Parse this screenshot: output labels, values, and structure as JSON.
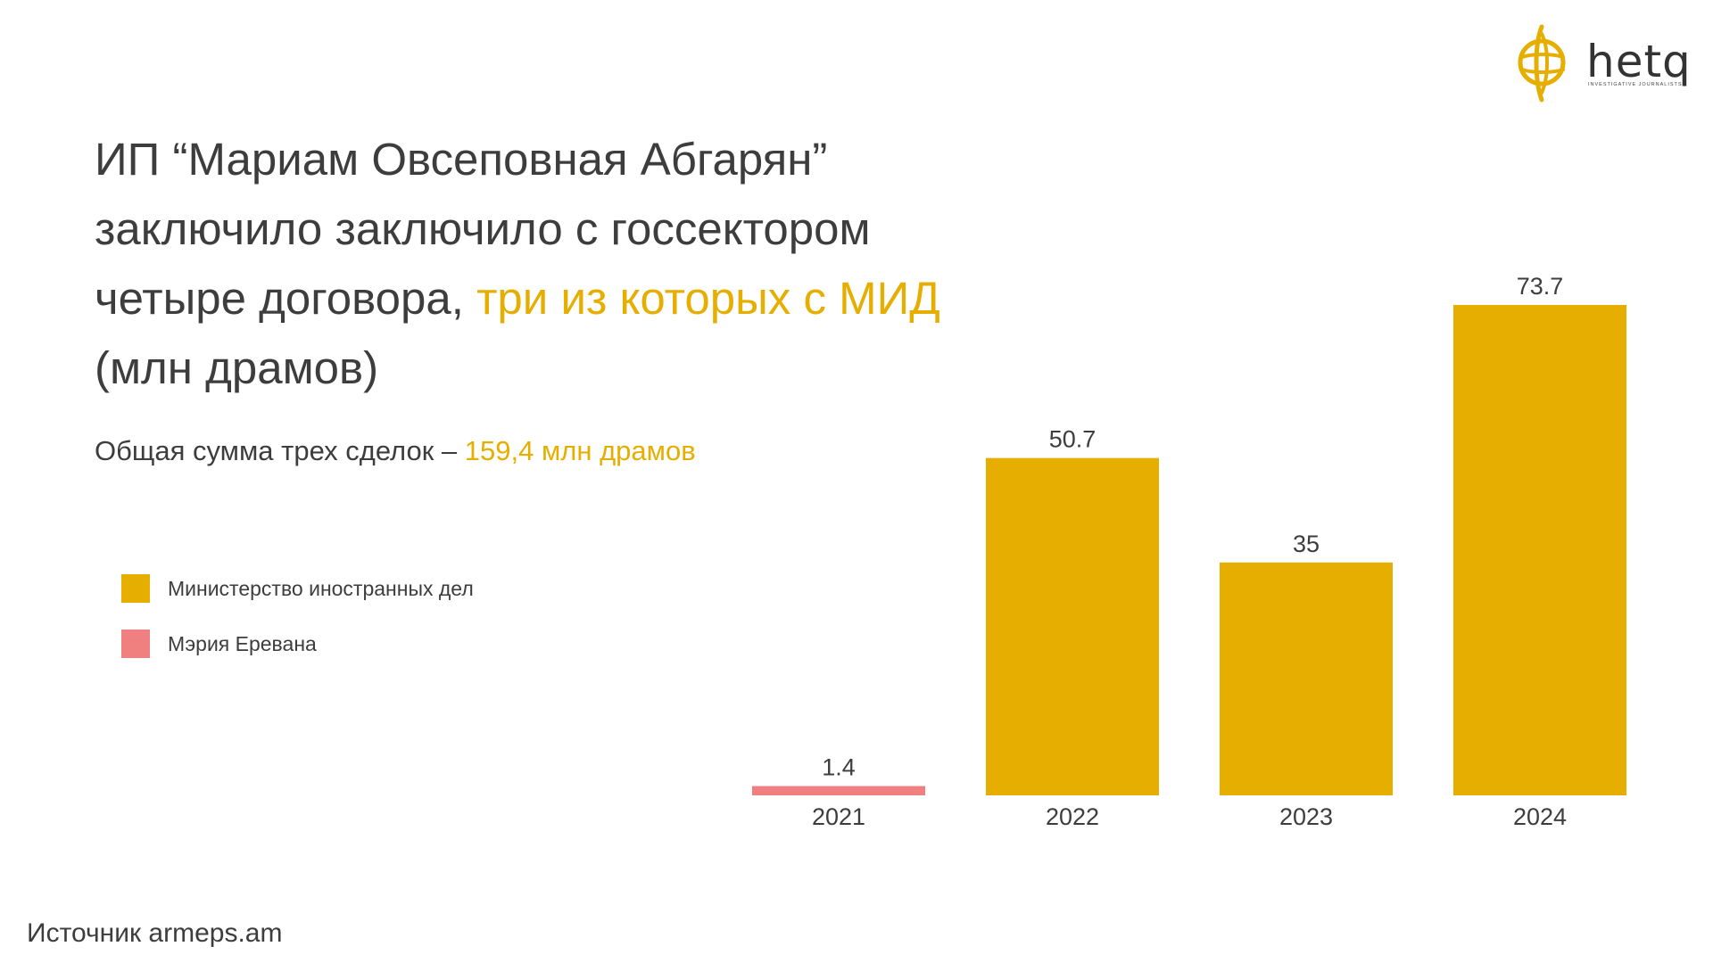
{
  "header": {
    "title_parts": [
      "ИП “Мариам Овсеповная Абгарян” заключило заключило с госсектором четыре договора, ",
      "три из которых с МИД",
      " (млн драмов)"
    ],
    "subtitle_prefix": "Общая сумма трех сделок – ",
    "subtitle_highlight": "159,4 млн драмов"
  },
  "logo": {
    "word": "hetq",
    "tagline": "INVESTIGATIVE JOURNALISTS"
  },
  "legend": [
    {
      "label": "Министерство иностранных дел",
      "color": "#e6ae00"
    },
    {
      "label": "Мэрия Еревана",
      "color": "#f08080"
    }
  ],
  "colors": {
    "accent": "#e6ae00",
    "secondary": "#f08080",
    "text": "#3d3d3d"
  },
  "chart_data": {
    "type": "bar",
    "categories": [
      "2021",
      "2022",
      "2023",
      "2024"
    ],
    "values": [
      1.4,
      50.7,
      35,
      73.7
    ],
    "value_labels": [
      "1.4",
      "50.7",
      "35",
      "73.7"
    ],
    "bar_series": [
      "Мэрия Еревана",
      "Министерство иностранных дел",
      "Министерство иностранных дел",
      "Министерство иностранных дел"
    ],
    "bar_colors": [
      "#f08080",
      "#e6ae00",
      "#e6ae00",
      "#e6ae00"
    ],
    "ylim": [
      0,
      73.7
    ],
    "grid": false,
    "legend_position": "left"
  },
  "footer": {
    "source": "Источник armeps.am"
  }
}
